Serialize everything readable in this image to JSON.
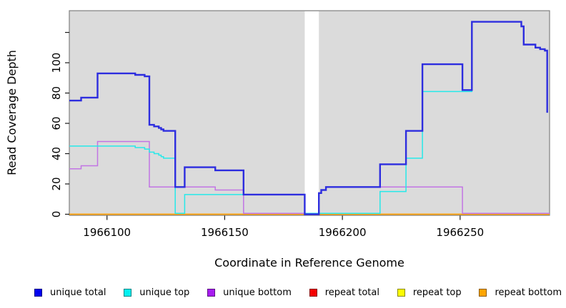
{
  "chart_data": {
    "type": "line",
    "subtype": "step-post",
    "title": "",
    "xlabel": "Coordinate in Reference Genome",
    "ylabel": "Read Coverage Depth",
    "xlim": [
      1966084,
      1966288
    ],
    "ylim": [
      0,
      134
    ],
    "x_ticks": [
      1966100,
      1966150,
      1966200,
      1966250
    ],
    "y_ticks": [
      0,
      20,
      40,
      60,
      80,
      100
    ],
    "y_ticks_unlabeled": [
      120
    ],
    "grid": false,
    "panel_bg": "#DBDBDB",
    "border_color": "#7F7F7F",
    "tick_color": "#1A1A1A",
    "gap_region": {
      "x_start": 1966184,
      "x_end": 1966190,
      "color": "#FFFFFF"
    },
    "legend_position": "bottom",
    "series": [
      {
        "name": "unique total",
        "color": "#2D2DDF",
        "legend_color": "#0101F0",
        "width": 2.4,
        "points": [
          [
            1966084,
            75
          ],
          [
            1966089,
            77
          ],
          [
            1966096,
            93
          ],
          [
            1966112,
            92
          ],
          [
            1966116,
            91
          ],
          [
            1966118,
            59
          ],
          [
            1966120,
            58
          ],
          [
            1966122,
            57
          ],
          [
            1966123,
            56
          ],
          [
            1966124,
            55
          ],
          [
            1966129,
            18
          ],
          [
            1966133,
            31
          ],
          [
            1966146,
            29
          ],
          [
            1966158,
            13
          ],
          [
            1966184,
            0
          ],
          [
            1966190,
            14
          ],
          [
            1966191,
            16
          ],
          [
            1966193,
            18
          ],
          [
            1966216,
            33
          ],
          [
            1966227,
            55
          ],
          [
            1966234,
            99
          ],
          [
            1966251,
            82
          ],
          [
            1966255,
            127
          ],
          [
            1966276,
            124
          ],
          [
            1966277,
            112
          ],
          [
            1966282,
            110
          ],
          [
            1966284,
            109
          ],
          [
            1966286,
            108
          ],
          [
            1966287,
            67
          ]
        ]
      },
      {
        "name": "unique top",
        "color": "#26E9E9",
        "legend_color": "#00F0F0",
        "width": 1.5,
        "points": [
          [
            1966084,
            45
          ],
          [
            1966112,
            44
          ],
          [
            1966116,
            43
          ],
          [
            1966118,
            41
          ],
          [
            1966120,
            40
          ],
          [
            1966122,
            39
          ],
          [
            1966123,
            38
          ],
          [
            1966124,
            37
          ],
          [
            1966129,
            0
          ],
          [
            1966133,
            13
          ],
          [
            1966184,
            0
          ],
          [
            1966216,
            15
          ],
          [
            1966227,
            37
          ],
          [
            1966234,
            81
          ],
          [
            1966255,
            127
          ],
          [
            1966276,
            124
          ],
          [
            1966277,
            112
          ],
          [
            1966282,
            110
          ],
          [
            1966284,
            109
          ],
          [
            1966286,
            108
          ],
          [
            1966287,
            67
          ]
        ]
      },
      {
        "name": "unique bottom",
        "color": "#C274E4",
        "legend_color": "#A81CF0",
        "width": 1.5,
        "points": [
          [
            1966084,
            30
          ],
          [
            1966089,
            32
          ],
          [
            1966096,
            48
          ],
          [
            1966118,
            18
          ],
          [
            1966146,
            16
          ],
          [
            1966158,
            0
          ],
          [
            1966190,
            14
          ],
          [
            1966191,
            16
          ],
          [
            1966193,
            18
          ],
          [
            1966251,
            0
          ],
          [
            1966288,
            0
          ]
        ]
      },
      {
        "name": "repeat total",
        "color": "#E60000",
        "legend_color": "#F50000",
        "width": 1.5,
        "points": [
          [
            1966084,
            0
          ],
          [
            1966288,
            0
          ]
        ]
      },
      {
        "name": "repeat top",
        "color": "#F0F000",
        "legend_color": "#FCFC00",
        "width": 1.5,
        "points": [
          [
            1966084,
            0
          ],
          [
            1966288,
            0
          ]
        ]
      },
      {
        "name": "repeat bottom",
        "color": "#FFA513",
        "legend_color": "#FFA500",
        "width": 1.7,
        "points": [
          [
            1966084,
            0
          ],
          [
            1966288,
            0
          ]
        ]
      }
    ],
    "draw_order": [
      3,
      4,
      5,
      2,
      1,
      0
    ]
  }
}
